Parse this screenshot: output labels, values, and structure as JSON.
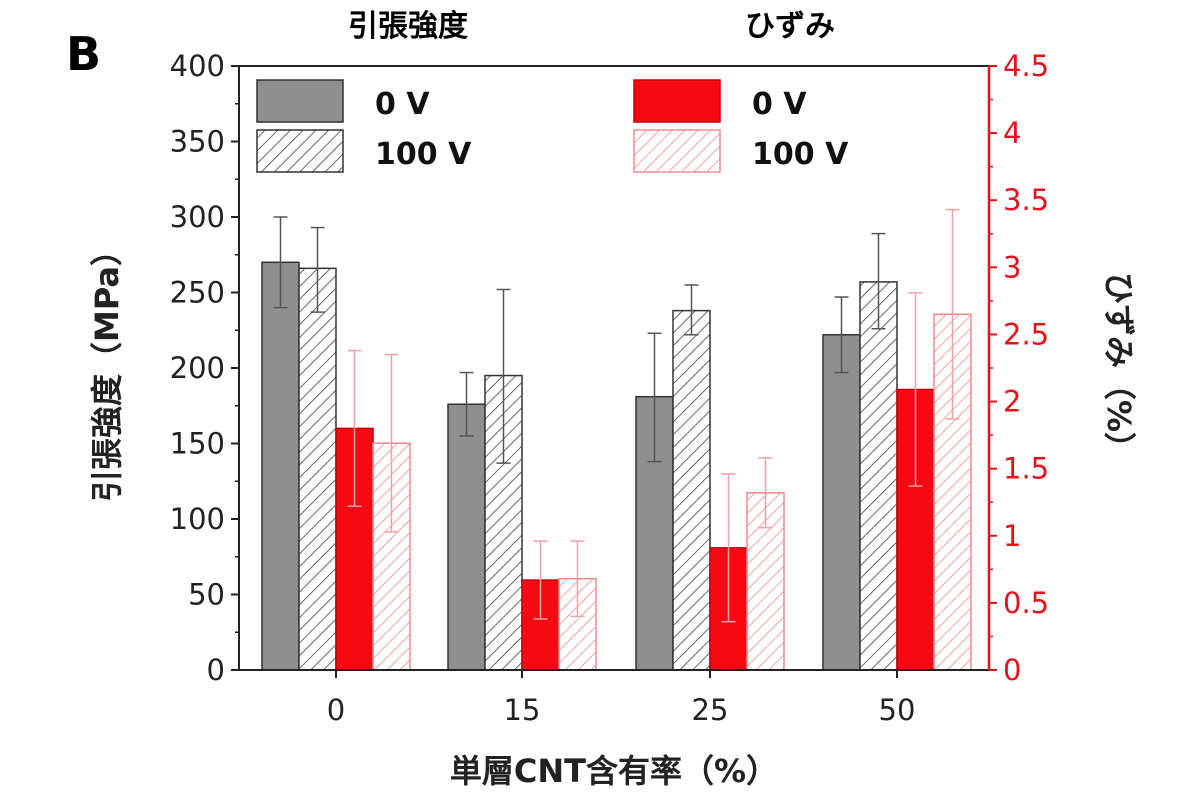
{
  "panel_label": "B",
  "group_labels": {
    "left": "引張強度",
    "right": "ひずみ"
  },
  "colors": {
    "gray_fill": "#8f8f8f",
    "red_fill": "#f50a14",
    "hatch_dark": "#444444",
    "hatch_red": "#f08a8f",
    "axis_dark": "#222222",
    "axis_red": "#e8101a"
  },
  "chart_data": {
    "type": "bar",
    "categories": [
      "0",
      "15",
      "25",
      "50"
    ],
    "xlabel": "単層CNT含有率（%）",
    "ylabel_left": "引張強度（MPa）",
    "ylabel_right": "ひずみ（%）",
    "ylim_left": [
      0,
      400
    ],
    "ylim_right": [
      0,
      4.5
    ],
    "yticks_left": [
      "0",
      "50",
      "100",
      "150",
      "200",
      "250",
      "300",
      "350",
      "400"
    ],
    "yticks_right": [
      "0",
      "0.5",
      "1",
      "1.5",
      "2",
      "2.5",
      "3",
      "3.5",
      "4",
      "4.5"
    ],
    "legend_placement": "top",
    "series": [
      {
        "name": "0 V",
        "quantity": "strength",
        "axis": "left",
        "style": "solid-gray",
        "values": [
          270,
          176,
          181,
          222
        ],
        "err_high": [
          300,
          197,
          223,
          247
        ],
        "err_low": [
          240,
          155,
          138,
          197
        ]
      },
      {
        "name": "100 V",
        "quantity": "strength",
        "axis": "left",
        "style": "hatch-gray",
        "values": [
          266,
          195,
          238,
          257
        ],
        "err_high": [
          293,
          252,
          255,
          289
        ],
        "err_low": [
          237,
          137,
          222,
          226
        ]
      },
      {
        "name": "0 V",
        "quantity": "strain",
        "axis": "right",
        "style": "solid-red",
        "values": [
          1.8,
          0.67,
          0.91,
          2.09
        ],
        "err_high": [
          2.38,
          0.96,
          1.46,
          2.81
        ],
        "err_low": [
          1.22,
          0.38,
          0.36,
          1.37
        ]
      },
      {
        "name": "100 V",
        "quantity": "strain",
        "axis": "right",
        "style": "hatch-red",
        "values": [
          1.69,
          0.68,
          1.32,
          2.65
        ],
        "err_high": [
          2.35,
          0.96,
          1.58,
          3.43
        ],
        "err_low": [
          1.03,
          0.4,
          1.06,
          1.87
        ]
      }
    ]
  }
}
